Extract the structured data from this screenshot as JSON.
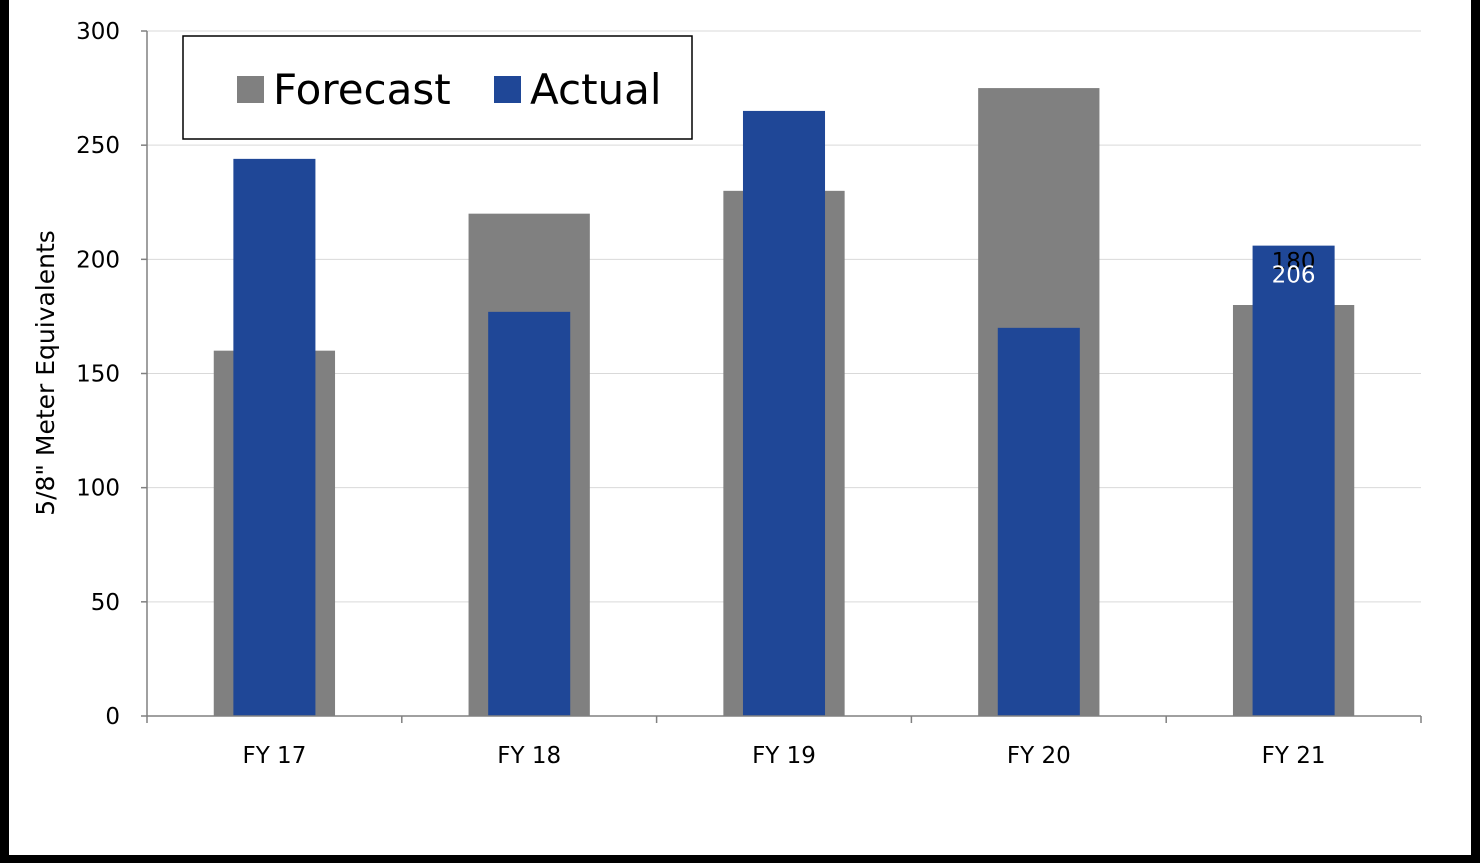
{
  "chart_data": {
    "type": "bar",
    "title": "",
    "xlabel": "",
    "ylabel": "5/8\" Meter Equivalents",
    "categories": [
      "FY 17",
      "FY 18",
      "FY 19",
      "FY 20",
      "FY 21"
    ],
    "series": [
      {
        "name": "Forecast",
        "color": "#808080",
        "values": [
          160,
          220,
          230,
          275,
          180
        ]
      },
      {
        "name": "Actual",
        "color": "#1F4797",
        "values": [
          244,
          177,
          265,
          170,
          206
        ]
      }
    ],
    "ylim": [
      0,
      300
    ],
    "yticks": [
      0,
      50,
      100,
      150,
      200,
      250,
      300
    ],
    "grid": true,
    "legend": "top-left",
    "data_labels": [
      {
        "category": "FY 21",
        "series": "Forecast",
        "text": "180"
      },
      {
        "category": "FY 21",
        "series": "Actual",
        "text": "206"
      }
    ]
  }
}
